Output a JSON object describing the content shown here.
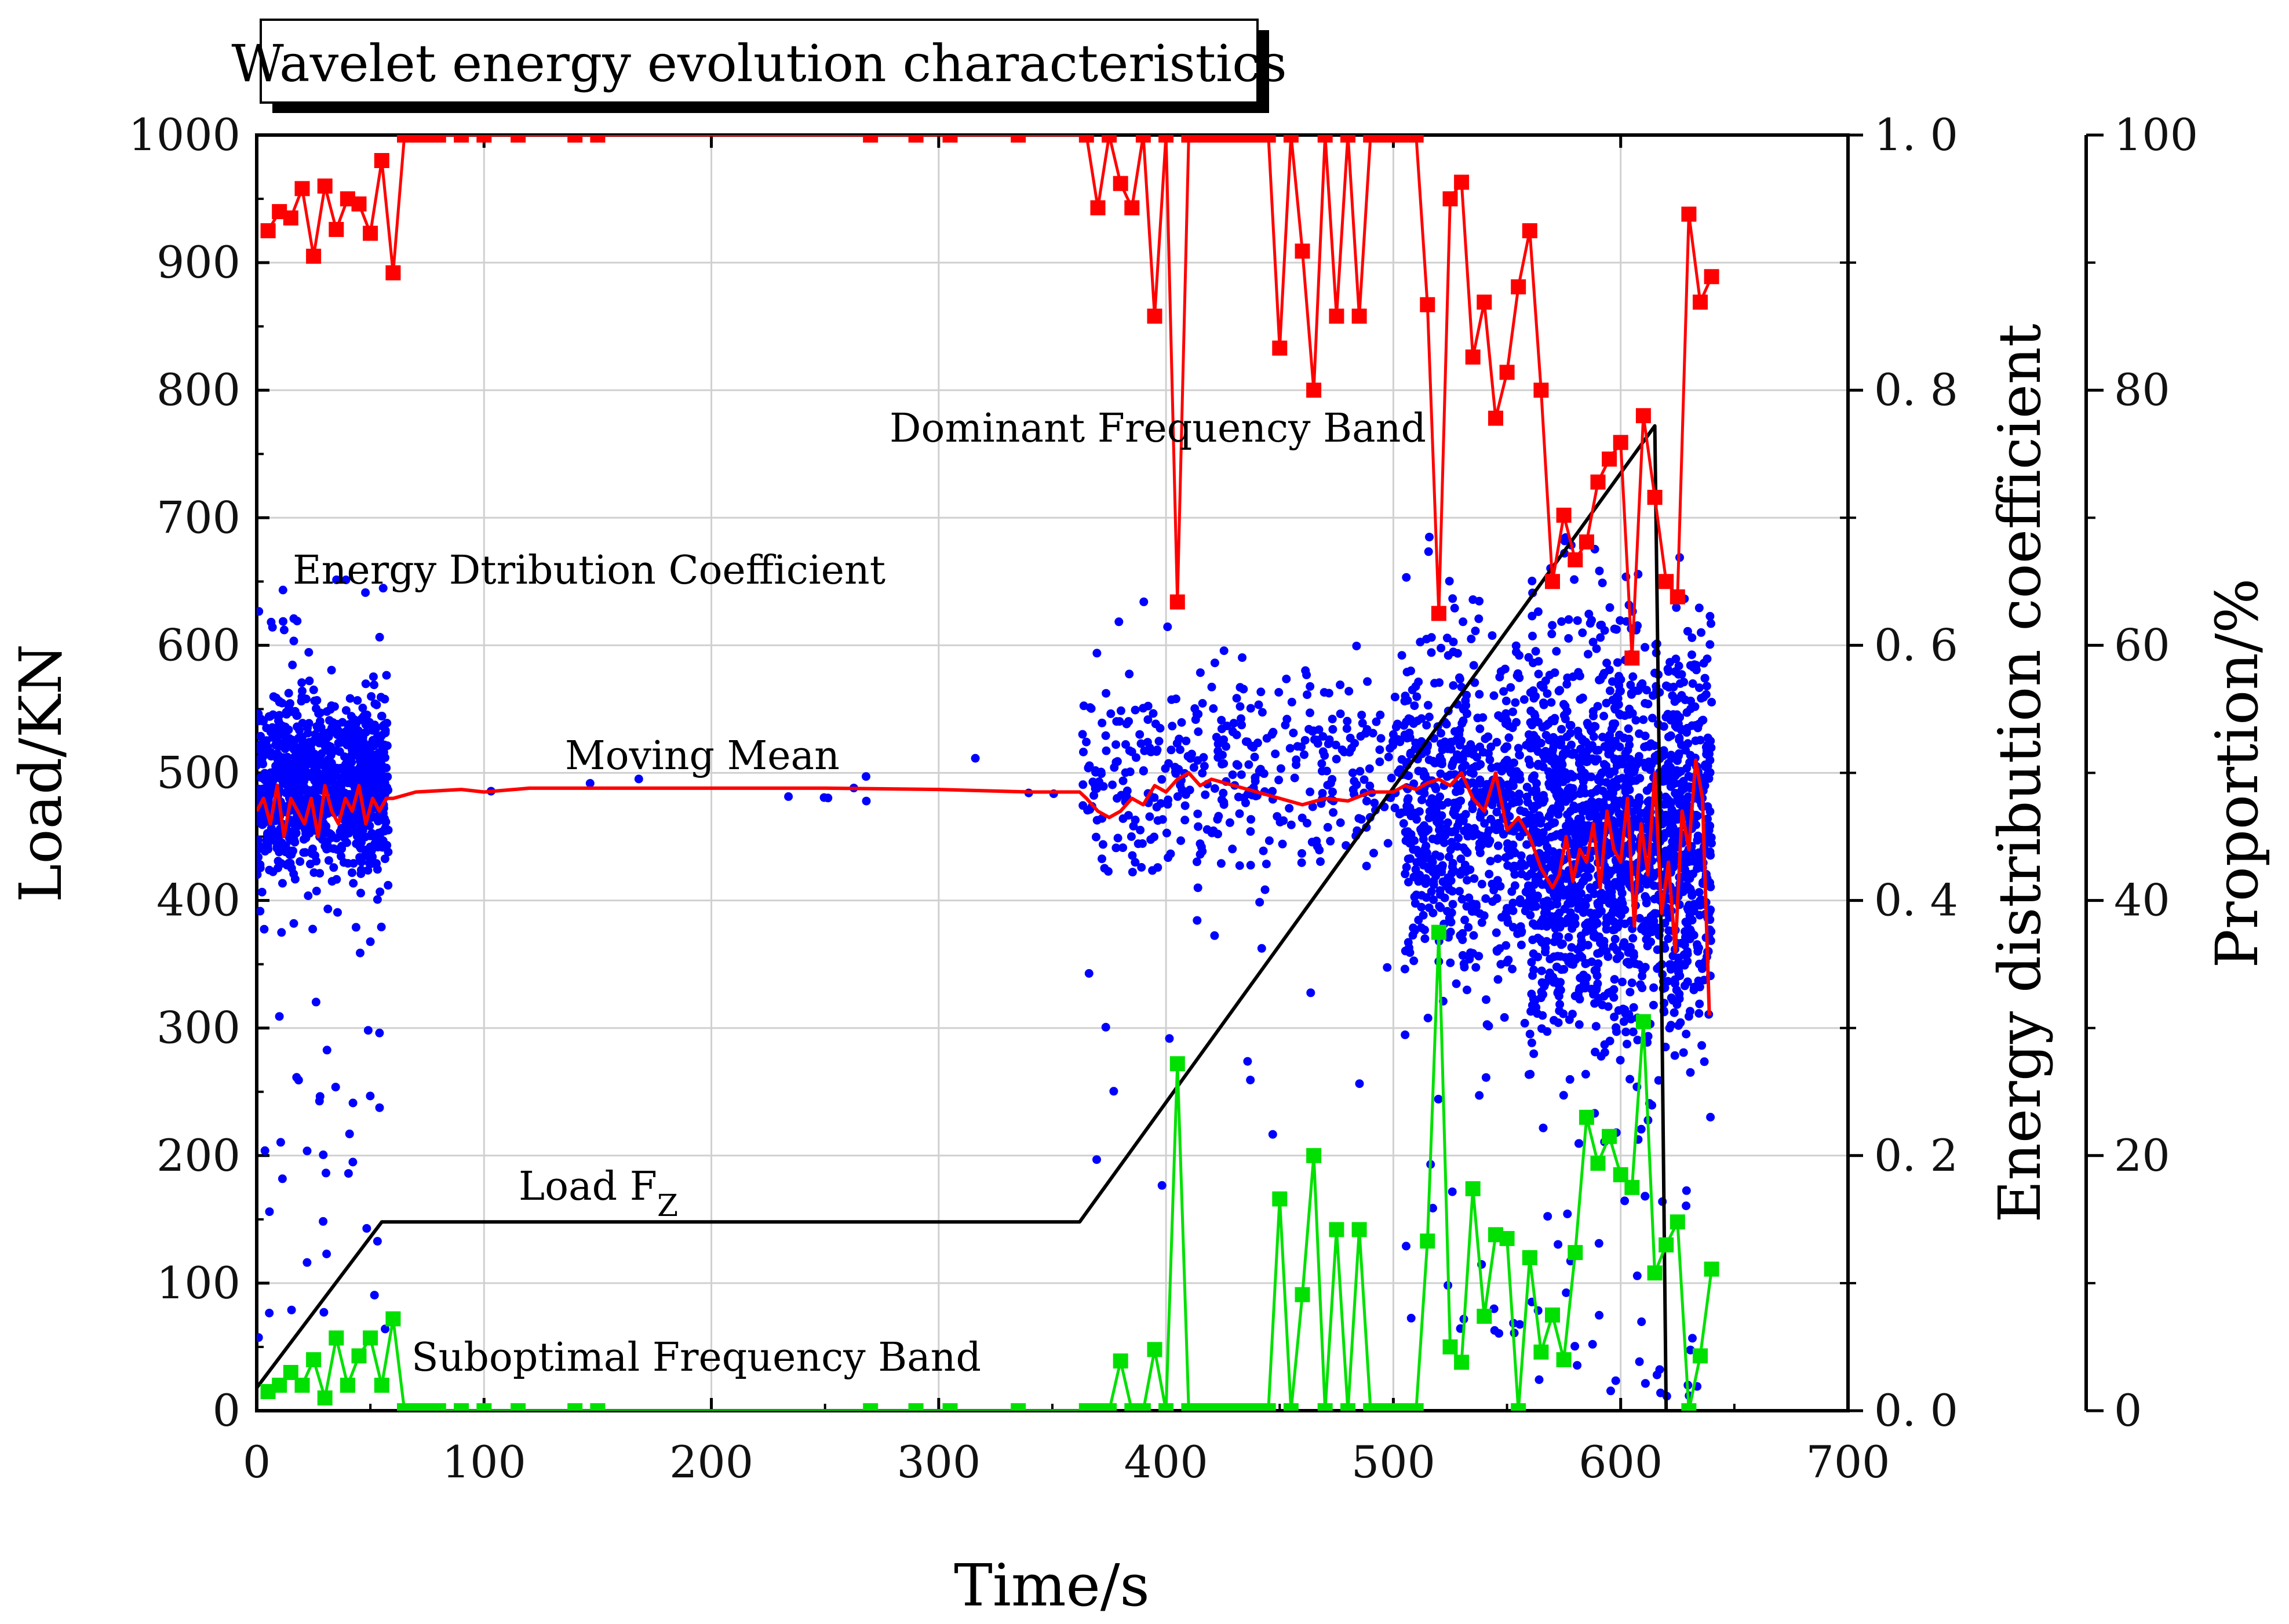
{
  "title": "Wavelet energy evolution characteristics",
  "chart_data": {
    "type": "scatter",
    "xlabel": "Time/s",
    "ylabel_left": "Load/KN",
    "ylabel_right1": "Energy distribution coefficient",
    "ylabel_right2": "Proportion/%",
    "xlim": [
      0,
      700
    ],
    "ylim_left": [
      0,
      1000
    ],
    "ylim_right1": [
      0,
      1.0
    ],
    "ylim_right2": [
      0,
      100
    ],
    "x_ticks": [
      "0",
      "100",
      "200",
      "300",
      "400",
      "500",
      "600",
      "700"
    ],
    "y_left_ticks": [
      "0",
      "100",
      "200",
      "300",
      "400",
      "500",
      "600",
      "700",
      "800",
      "900",
      "1000"
    ],
    "y_right1_ticks": [
      "0. 0",
      "0. 2",
      "0. 4",
      "0. 6",
      "0. 8",
      "1. 0"
    ],
    "y_right2_ticks": [
      "0",
      "20",
      "40",
      "60",
      "80",
      "100"
    ],
    "annotations": {
      "dominant": "Dominant Frequency Band",
      "energy": "Energy Dtribution Coefficient",
      "moving_mean": "Moving Mean",
      "load": "Load F",
      "load_sub": "Z",
      "suboptimal": "Suboptimal Frequency Band"
    },
    "colors": {
      "load": "#000000",
      "scatter": "#0000ff",
      "moving_mean": "#ff0000",
      "dominant": "#ff0000",
      "suboptimal": "#00e000"
    },
    "series": [
      {
        "name": "Load F_Z",
        "axis": "left",
        "style": "line",
        "x": [
          0,
          55,
          362,
          615,
          617,
          620
        ],
        "y": [
          18,
          148,
          148,
          772,
          500,
          0
        ]
      },
      {
        "name": "Moving Mean",
        "axis": "right1",
        "style": "line",
        "x": [
          0,
          3,
          6,
          9,
          12,
          15,
          18,
          21,
          24,
          27,
          30,
          33,
          36,
          39,
          42,
          45,
          48,
          51,
          54,
          57,
          60,
          70,
          90,
          100,
          120,
          150,
          200,
          250,
          300,
          340,
          362,
          365,
          370,
          375,
          380,
          385,
          390,
          395,
          400,
          405,
          410,
          415,
          420,
          430,
          440,
          450,
          460,
          470,
          480,
          490,
          500,
          505,
          510,
          515,
          520,
          525,
          530,
          535,
          540,
          545,
          550,
          555,
          560,
          565,
          570,
          573,
          576,
          579,
          582,
          585,
          588,
          591,
          594,
          597,
          600,
          603,
          606,
          609,
          612,
          615,
          618,
          621,
          624,
          627,
          630,
          633,
          636,
          639
        ],
        "y": [
          0.47,
          0.48,
          0.46,
          0.49,
          0.45,
          0.48,
          0.47,
          0.46,
          0.48,
          0.45,
          0.49,
          0.47,
          0.46,
          0.48,
          0.47,
          0.49,
          0.46,
          0.48,
          0.47,
          0.48,
          0.48,
          0.485,
          0.487,
          0.485,
          0.488,
          0.488,
          0.488,
          0.488,
          0.487,
          0.485,
          0.485,
          0.48,
          0.47,
          0.465,
          0.47,
          0.48,
          0.475,
          0.49,
          0.485,
          0.495,
          0.5,
          0.49,
          0.495,
          0.49,
          0.485,
          0.48,
          0.475,
          0.48,
          0.478,
          0.485,
          0.485,
          0.49,
          0.487,
          0.492,
          0.495,
          0.49,
          0.5,
          0.48,
          0.47,
          0.5,
          0.455,
          0.465,
          0.45,
          0.425,
          0.41,
          0.42,
          0.45,
          0.415,
          0.44,
          0.43,
          0.46,
          0.41,
          0.47,
          0.44,
          0.43,
          0.48,
          0.38,
          0.46,
          0.42,
          0.5,
          0.39,
          0.43,
          0.36,
          0.47,
          0.44,
          0.51,
          0.48,
          0.31
        ]
      },
      {
        "name": "Dominant Frequency Band",
        "axis": "right2",
        "style": "line+square",
        "x": [
          5,
          10,
          15,
          20,
          25,
          30,
          35,
          40,
          45,
          50,
          55,
          60,
          65,
          70,
          75,
          80,
          90,
          100,
          115,
          140,
          150,
          270,
          290,
          305,
          335,
          365,
          370,
          375,
          380,
          385,
          390,
          395,
          400,
          405,
          410,
          415,
          420,
          425,
          430,
          435,
          440,
          445,
          450,
          455,
          460,
          465,
          470,
          475,
          480,
          485,
          490,
          495,
          500,
          505,
          510,
          515,
          520,
          525,
          530,
          535,
          540,
          545,
          550,
          555,
          560,
          565,
          570,
          575,
          580,
          585,
          590,
          595,
          600,
          605,
          610,
          615,
          620,
          625,
          630,
          635,
          640
        ],
        "y": [
          92.5,
          94,
          93.5,
          95.8,
          90.5,
          96,
          92.6,
          95,
          94.6,
          92.3,
          98,
          89.2,
          100,
          100,
          100,
          100,
          100,
          100,
          100,
          100,
          100,
          100,
          100,
          100,
          100,
          100,
          94.3,
          100,
          96.2,
          94.3,
          100,
          85.8,
          100,
          63.4,
          100,
          100,
          100,
          100,
          100,
          100,
          100,
          100,
          83.3,
          100,
          90.9,
          80,
          100,
          85.8,
          100,
          85.8,
          100,
          100,
          100,
          100,
          100,
          86.7,
          62.5,
          95,
          96.3,
          82.6,
          86.9,
          77.8,
          81.4,
          88.1,
          92.5,
          80,
          65,
          70.2,
          66.7,
          68.1,
          72.8,
          74.6,
          75.9,
          59,
          78,
          71.6,
          65,
          63.8,
          93.8,
          86.9,
          88.9
        ]
      },
      {
        "name": "Suboptimal Frequency Band",
        "axis": "right2",
        "style": "line+square",
        "x": [
          5,
          10,
          15,
          20,
          25,
          30,
          35,
          40,
          45,
          50,
          55,
          60,
          65,
          70,
          75,
          80,
          90,
          100,
          115,
          140,
          150,
          270,
          290,
          305,
          335,
          365,
          370,
          375,
          380,
          385,
          390,
          395,
          400,
          405,
          410,
          415,
          420,
          425,
          430,
          435,
          440,
          445,
          450,
          455,
          460,
          465,
          470,
          475,
          480,
          485,
          490,
          495,
          500,
          505,
          510,
          515,
          520,
          525,
          530,
          535,
          540,
          545,
          550,
          555,
          560,
          565,
          570,
          575,
          580,
          585,
          590,
          595,
          600,
          605,
          610,
          615,
          620,
          625,
          630,
          635,
          640
        ],
        "y": [
          1.5,
          2,
          3,
          2,
          4,
          1,
          5.7,
          2,
          4.3,
          5.7,
          2,
          7.2,
          0,
          0,
          0,
          0,
          0,
          0,
          0,
          0,
          0,
          0,
          0,
          0,
          0,
          0,
          0,
          0,
          3.9,
          0,
          0,
          4.8,
          0,
          27.2,
          0,
          0,
          0,
          0,
          0,
          0,
          0,
          0,
          16.6,
          0,
          9.1,
          20,
          0,
          14.2,
          0,
          14.2,
          0,
          0,
          0,
          0,
          0,
          13.3,
          37.5,
          5,
          3.8,
          17.4,
          7.4,
          13.8,
          13.5,
          0,
          12,
          4.6,
          7.5,
          4,
          12.4,
          23,
          19.4,
          21.5,
          18.5,
          17.5,
          30.5,
          10.8,
          13,
          14.8,
          0,
          4.3,
          11.1
        ]
      },
      {
        "name": "Energy Distribution Coefficient",
        "axis": "right1",
        "style": "scatter",
        "clusters": [
          {
            "x_range": [
              0,
              58
            ],
            "mean": 0.49,
            "spread": 0.065,
            "min": 0.05,
            "max": 0.66,
            "count": 1100
          },
          {
            "x_range": [
              58,
              360
            ],
            "mean": 0.49,
            "spread": 0.03,
            "min": 0.32,
            "max": 0.52,
            "count": 12
          },
          {
            "x_range": [
              363,
              505
            ],
            "mean": 0.5,
            "spread": 0.08,
            "min": 0.14,
            "max": 0.64,
            "count": 420
          },
          {
            "x_range": [
              505,
              560
            ],
            "mean": 0.47,
            "spread": 0.12,
            "min": 0.05,
            "max": 0.69,
            "count": 650
          },
          {
            "x_range": [
              560,
              640
            ],
            "mean": 0.45,
            "spread": 0.15,
            "min": 0.0,
            "max": 0.69,
            "count": 1800
          }
        ]
      }
    ]
  }
}
